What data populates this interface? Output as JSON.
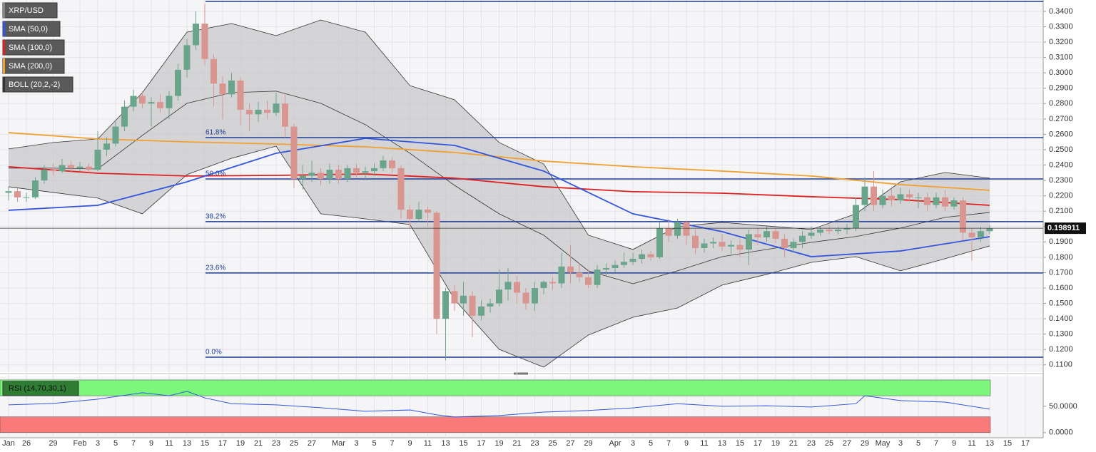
{
  "chart_data": {
    "type": "candlestick",
    "name": "XRP/USD",
    "categories": [
      "Jan",
      null,
      "26",
      null,
      null,
      "29",
      null,
      null,
      "Feb",
      null,
      "3",
      null,
      "5",
      null,
      "7",
      null,
      "9",
      null,
      "11",
      null,
      "13",
      null,
      "15",
      null,
      "17",
      null,
      "19",
      null,
      "21",
      null,
      "23",
      null,
      "25",
      null,
      "27",
      null,
      null,
      "Mar",
      null,
      "3",
      null,
      "5",
      null,
      "7",
      null,
      "9",
      null,
      "11",
      null,
      "13",
      null,
      "15",
      null,
      "17",
      null,
      "19",
      null,
      "21",
      null,
      "23",
      null,
      "25",
      null,
      "27",
      null,
      "29",
      null,
      null,
      "Apr",
      null,
      "3",
      null,
      "5",
      null,
      "7",
      null,
      "9",
      null,
      "11",
      null,
      "13",
      null,
      "15",
      null,
      "17",
      null,
      "19",
      null,
      "21",
      null,
      "23",
      null,
      "25",
      null,
      "27",
      null,
      "29",
      null,
      "May",
      null,
      "3",
      null,
      "5",
      null,
      "7",
      null,
      "9",
      null,
      "11",
      null,
      "13",
      null,
      "15",
      null,
      "17"
    ],
    "ohlc": [
      [
        0.222,
        0.226,
        0.217,
        0.223
      ],
      [
        0.223,
        0.225,
        0.216,
        0.219
      ],
      [
        0.219,
        0.222,
        0.216,
        0.219
      ],
      [
        0.219,
        0.232,
        0.218,
        0.23
      ],
      [
        0.23,
        0.24,
        0.228,
        0.237
      ],
      [
        0.237,
        0.241,
        0.233,
        0.236
      ],
      [
        0.236,
        0.244,
        0.235,
        0.24
      ],
      [
        0.24,
        0.243,
        0.235,
        0.238
      ],
      [
        0.238,
        0.242,
        0.236,
        0.239
      ],
      [
        0.239,
        0.241,
        0.235,
        0.237
      ],
      [
        0.237,
        0.262,
        0.236,
        0.25
      ],
      [
        0.25,
        0.258,
        0.246,
        0.254
      ],
      [
        0.254,
        0.268,
        0.252,
        0.265
      ],
      [
        0.265,
        0.282,
        0.262,
        0.278
      ],
      [
        0.278,
        0.289,
        0.275,
        0.285
      ],
      [
        0.285,
        0.288,
        0.277,
        0.28
      ],
      [
        0.28,
        0.284,
        0.265,
        0.281
      ],
      [
        0.281,
        0.286,
        0.274,
        0.277
      ],
      [
        0.277,
        0.288,
        0.27,
        0.285
      ],
      [
        0.285,
        0.306,
        0.282,
        0.302
      ],
      [
        0.302,
        0.322,
        0.297,
        0.318
      ],
      [
        0.318,
        0.34,
        0.315,
        0.332
      ],
      [
        0.332,
        0.345,
        0.305,
        0.309
      ],
      [
        0.309,
        0.312,
        0.278,
        0.293
      ],
      [
        0.293,
        0.298,
        0.27,
        0.286
      ],
      [
        0.286,
        0.3,
        0.284,
        0.295
      ],
      [
        0.295,
        0.297,
        0.266,
        0.276
      ],
      [
        0.276,
        0.28,
        0.262,
        0.273
      ],
      [
        0.273,
        0.281,
        0.268,
        0.276
      ],
      [
        0.276,
        0.282,
        0.27,
        0.274
      ],
      [
        0.274,
        0.287,
        0.272,
        0.28
      ],
      [
        0.28,
        0.286,
        0.258,
        0.265
      ],
      [
        0.265,
        0.267,
        0.225,
        0.231
      ],
      [
        0.231,
        0.24,
        0.224,
        0.233
      ],
      [
        0.233,
        0.243,
        0.229,
        0.235
      ],
      [
        0.235,
        0.238,
        0.227,
        0.231
      ],
      [
        0.231,
        0.241,
        0.228,
        0.237
      ],
      [
        0.237,
        0.24,
        0.228,
        0.231
      ],
      [
        0.231,
        0.24,
        0.229,
        0.238
      ],
      [
        0.238,
        0.241,
        0.232,
        0.235
      ],
      [
        0.235,
        0.239,
        0.231,
        0.236
      ],
      [
        0.236,
        0.241,
        0.233,
        0.238
      ],
      [
        0.238,
        0.246,
        0.236,
        0.243
      ],
      [
        0.243,
        0.245,
        0.235,
        0.238
      ],
      [
        0.238,
        0.24,
        0.205,
        0.211
      ],
      [
        0.211,
        0.214,
        0.199,
        0.205
      ],
      [
        0.205,
        0.216,
        0.203,
        0.211
      ],
      [
        0.211,
        0.213,
        0.2,
        0.209
      ],
      [
        0.209,
        0.21,
        0.13,
        0.14
      ],
      [
        0.14,
        0.16,
        0.113,
        0.158
      ],
      [
        0.158,
        0.162,
        0.145,
        0.15
      ],
      [
        0.15,
        0.164,
        0.142,
        0.155
      ],
      [
        0.155,
        0.158,
        0.128,
        0.142
      ],
      [
        0.142,
        0.152,
        0.139,
        0.148
      ],
      [
        0.148,
        0.153,
        0.144,
        0.15
      ],
      [
        0.15,
        0.172,
        0.148,
        0.159
      ],
      [
        0.159,
        0.173,
        0.152,
        0.164
      ],
      [
        0.164,
        0.168,
        0.15,
        0.157
      ],
      [
        0.157,
        0.16,
        0.146,
        0.15
      ],
      [
        0.15,
        0.164,
        0.145,
        0.16
      ],
      [
        0.16,
        0.165,
        0.156,
        0.164
      ],
      [
        0.164,
        0.167,
        0.159,
        0.163
      ],
      [
        0.163,
        0.183,
        0.16,
        0.174
      ],
      [
        0.174,
        0.188,
        0.163,
        0.17
      ],
      [
        0.17,
        0.176,
        0.164,
        0.167
      ],
      [
        0.167,
        0.172,
        0.16,
        0.162
      ],
      [
        0.162,
        0.175,
        0.16,
        0.172
      ],
      [
        0.172,
        0.176,
        0.168,
        0.173
      ],
      [
        0.173,
        0.178,
        0.17,
        0.175
      ],
      [
        0.175,
        0.183,
        0.173,
        0.177
      ],
      [
        0.177,
        0.183,
        0.175,
        0.179
      ],
      [
        0.179,
        0.185,
        0.176,
        0.182
      ],
      [
        0.182,
        0.184,
        0.178,
        0.18
      ],
      [
        0.18,
        0.203,
        0.179,
        0.199
      ],
      [
        0.199,
        0.205,
        0.19,
        0.194
      ],
      [
        0.194,
        0.205,
        0.192,
        0.203
      ],
      [
        0.203,
        0.204,
        0.188,
        0.194
      ],
      [
        0.194,
        0.198,
        0.182,
        0.186
      ],
      [
        0.186,
        0.192,
        0.183,
        0.189
      ],
      [
        0.189,
        0.193,
        0.186,
        0.19
      ],
      [
        0.19,
        0.195,
        0.184,
        0.187
      ],
      [
        0.187,
        0.191,
        0.182,
        0.188
      ],
      [
        0.188,
        0.192,
        0.18,
        0.185
      ],
      [
        0.185,
        0.198,
        0.175,
        0.195
      ],
      [
        0.195,
        0.199,
        0.188,
        0.193
      ],
      [
        0.193,
        0.2,
        0.19,
        0.197
      ],
      [
        0.197,
        0.199,
        0.189,
        0.192
      ],
      [
        0.192,
        0.195,
        0.18,
        0.186
      ],
      [
        0.186,
        0.192,
        0.183,
        0.19
      ],
      [
        0.19,
        0.197,
        0.186,
        0.194
      ],
      [
        0.194,
        0.2,
        0.192,
        0.196
      ],
      [
        0.196,
        0.2,
        0.194,
        0.198
      ],
      [
        0.198,
        0.201,
        0.195,
        0.197
      ],
      [
        0.197,
        0.2,
        0.195,
        0.198
      ],
      [
        0.198,
        0.202,
        0.195,
        0.199
      ],
      [
        0.199,
        0.219,
        0.197,
        0.214
      ],
      [
        0.214,
        0.232,
        0.21,
        0.226
      ],
      [
        0.226,
        0.236,
        0.21,
        0.214
      ],
      [
        0.214,
        0.224,
        0.212,
        0.22
      ],
      [
        0.22,
        0.224,
        0.213,
        0.217
      ],
      [
        0.217,
        0.225,
        0.215,
        0.221
      ],
      [
        0.221,
        0.224,
        0.216,
        0.219
      ],
      [
        0.219,
        0.222,
        0.212,
        0.219
      ],
      [
        0.219,
        0.222,
        0.21,
        0.214
      ],
      [
        0.214,
        0.222,
        0.212,
        0.219
      ],
      [
        0.219,
        0.224,
        0.21,
        0.213
      ],
      [
        0.213,
        0.219,
        0.211,
        0.217
      ],
      [
        0.217,
        0.219,
        0.191,
        0.196
      ],
      [
        0.196,
        0.199,
        0.178,
        0.193
      ],
      [
        0.193,
        0.2,
        0.19,
        0.197
      ],
      [
        0.197,
        0.201,
        0.195,
        0.198911
      ],
      null,
      null,
      null,
      null
    ],
    "up_color": "#6aa58b",
    "down_color": "#d99590",
    "ylim": [
      0.1062,
      0.3474
    ],
    "yticks": [
      {
        "value": 0.11,
        "label": "0.1100"
      },
      {
        "value": 0.12,
        "label": "0.1200"
      },
      {
        "value": 0.13,
        "label": "0.1300"
      },
      {
        "value": 0.14,
        "label": "0.1400"
      },
      {
        "value": 0.15,
        "label": "0.1500"
      },
      {
        "value": 0.16,
        "label": "0.1600"
      },
      {
        "value": 0.17,
        "label": "0.1700"
      },
      {
        "value": 0.18,
        "label": "0.1800"
      },
      {
        "value": 0.19,
        "label": "0.1900"
      },
      {
        "value": 0.2,
        "label": "0.2000"
      },
      {
        "value": 0.21,
        "label": "0.2100"
      },
      {
        "value": 0.22,
        "label": "0.2200"
      },
      {
        "value": 0.23,
        "label": "0.2300"
      },
      {
        "value": 0.24,
        "label": "0.2400"
      },
      {
        "value": 0.25,
        "label": "0.2500"
      },
      {
        "value": 0.26,
        "label": "0.2600"
      },
      {
        "value": 0.27,
        "label": "0.2700"
      },
      {
        "value": 0.28,
        "label": "0.2800"
      },
      {
        "value": 0.29,
        "label": "0.2900"
      },
      {
        "value": 0.3,
        "label": "0.3000"
      },
      {
        "value": 0.31,
        "label": "0.3100"
      },
      {
        "value": 0.32,
        "label": "0.3200"
      },
      {
        "value": 0.33,
        "label": "0.3300"
      },
      {
        "value": 0.34,
        "label": "0.3400"
      }
    ],
    "grid": true,
    "last": {
      "value": 0.198911,
      "label": "0.198911"
    },
    "levels": [
      {
        "label": "0.0%",
        "value": 0.115
      },
      {
        "label": "23.6%",
        "value": 0.1698
      },
      {
        "label": "38.2%",
        "value": 0.2032
      },
      {
        "label": "50.0%",
        "value": 0.231
      },
      {
        "label": "61.8%",
        "value": 0.2579
      },
      {
        "value": 0.3465
      }
    ],
    "level_color": "#1c3c96",
    "series": [
      {
        "name": "SMA (50,0)",
        "color": "#3355dd",
        "x": [
          0,
          10,
          20,
          30,
          40,
          50,
          60,
          70,
          80,
          90,
          100,
          110
        ],
        "values": [
          0.2106,
          0.2138,
          0.2291,
          0.2477,
          0.2574,
          0.2528,
          0.2361,
          0.2083,
          0.1967,
          0.1804,
          0.1841,
          0.1934
        ]
      },
      {
        "name": "SMA (100,0)",
        "color": "#e02020",
        "x": [
          0,
          10,
          20,
          30,
          40,
          50,
          60,
          70,
          80,
          90,
          100,
          110
        ],
        "values": [
          0.2389,
          0.2347,
          0.2329,
          0.2333,
          0.2342,
          0.2315,
          0.2259,
          0.2227,
          0.2217,
          0.2194,
          0.2175,
          0.2138
        ]
      },
      {
        "name": "SMA (200,0)",
        "color": "#f0a030",
        "x": [
          0,
          10,
          20,
          30,
          40,
          50,
          60,
          70,
          80,
          90,
          100,
          110
        ],
        "values": [
          0.2611,
          0.257,
          0.2551,
          0.2537,
          0.2519,
          0.2482,
          0.2426,
          0.2389,
          0.2361,
          0.2329,
          0.2273,
          0.2236
        ]
      },
      {
        "name": "BOLL (20,2,-2)",
        "color": "#333333",
        "x": [
          0,
          5,
          10,
          15,
          20,
          25,
          30,
          35,
          40,
          45,
          50,
          55,
          60,
          65,
          70,
          75,
          80,
          85,
          90,
          95,
          100,
          105,
          110
        ],
        "upper": [
          0.2505,
          0.2547,
          0.257,
          0.2871,
          0.3265,
          0.3321,
          0.3242,
          0.3344,
          0.3265,
          0.2917,
          0.2825,
          0.2547,
          0.2407,
          0.1944,
          0.1851,
          0.2,
          0.2027,
          0.2004,
          0.1981,
          0.2083,
          0.2291,
          0.2352,
          0.2315
        ],
        "middle": [
          0.238,
          0.238,
          0.2375,
          0.2593,
          0.2802,
          0.2871,
          0.2881,
          0.2802,
          0.2663,
          0.2477,
          0.2268,
          0.2083,
          0.1944,
          0.1712,
          0.1628,
          0.1712,
          0.1804,
          0.1851,
          0.1897,
          0.1935,
          0.199,
          0.206,
          0.2092
        ],
        "lower": [
          0.2259,
          0.2222,
          0.2185,
          0.2083,
          0.2338,
          0.2444,
          0.2523,
          0.2083,
          0.205,
          0.2013,
          0.1526,
          0.1201,
          0.1085,
          0.1294,
          0.141,
          0.147,
          0.1619,
          0.1689,
          0.1767,
          0.1804,
          0.1712,
          0.1791,
          0.1874
        ]
      }
    ],
    "rsi": {
      "name": "RSI (14,70,30,1)",
      "color": "#3355dd",
      "x": [
        0,
        5,
        10,
        15,
        18,
        20,
        22,
        25,
        30,
        35,
        40,
        45,
        48,
        50,
        55,
        60,
        65,
        70,
        75,
        80,
        85,
        90,
        95,
        96,
        100,
        105,
        110
      ],
      "values": [
        52.7,
        55.4,
        63.5,
        75.7,
        70,
        78.4,
        66,
        55,
        52.7,
        47.3,
        40.5,
        43,
        33.8,
        29.7,
        32.4,
        39,
        42,
        47,
        55,
        50,
        51,
        48.6,
        55,
        70,
        60.8,
        58,
        44.6
      ],
      "ylim": [
        -7,
        104
      ],
      "yticks": [
        {
          "value": 0,
          "label": "0.0000"
        },
        {
          "value": 50,
          "label": "50.0000"
        }
      ],
      "bands": [
        {
          "from": 70,
          "to": 100,
          "color": "#7cf77c"
        },
        {
          "from": 0,
          "to": 30,
          "color": "#fa7a7a"
        }
      ]
    }
  }
}
